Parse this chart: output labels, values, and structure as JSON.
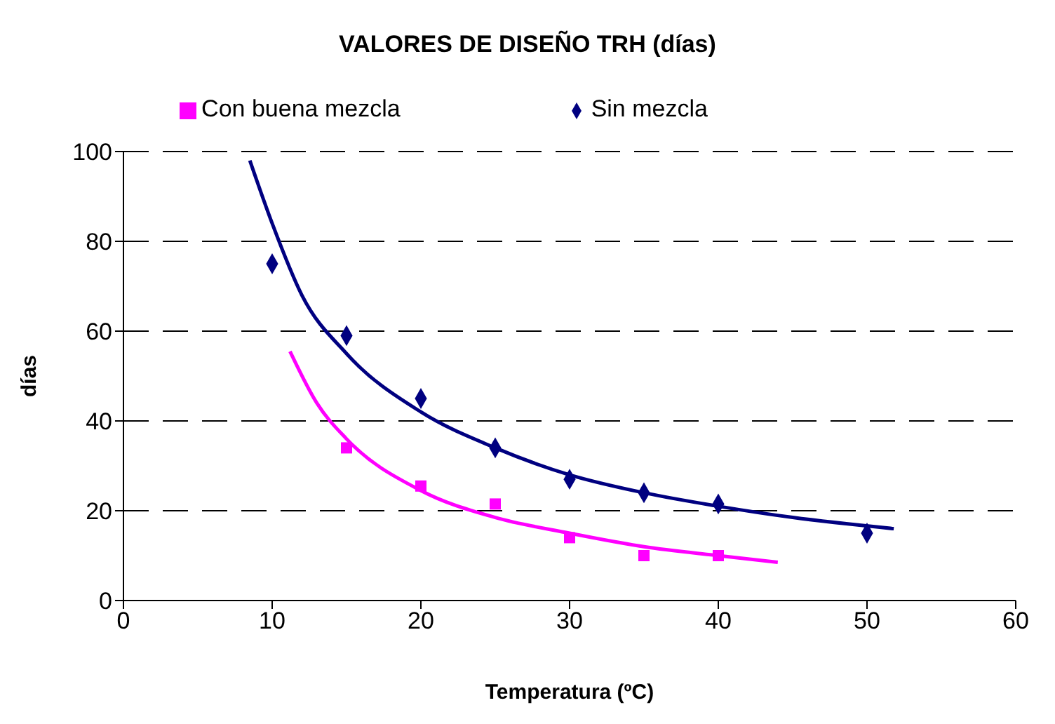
{
  "chart_data": {
    "type": "scatter",
    "title": "VALORES DE DISEÑO TRH (días)",
    "xlabel": "Temperatura (ºC)",
    "ylabel": "días",
    "xlim": [
      0,
      60
    ],
    "xticks": [
      0,
      10,
      20,
      30,
      40,
      50,
      60
    ],
    "ylim": [
      0,
      100
    ],
    "yticks": [
      0,
      20,
      40,
      60,
      80,
      100
    ],
    "grid": "y",
    "legend": "top",
    "series": [
      {
        "name": "Sin mezcla",
        "color": "#000080",
        "marker": "diamond",
        "x": [
          10,
          15,
          20,
          25,
          30,
          35,
          40,
          50
        ],
        "values": [
          75,
          59,
          45,
          34,
          27,
          24,
          21.5,
          15
        ]
      },
      {
        "name": "Con buena mezcla",
        "color": "#ff00ff",
        "marker": "square",
        "x": [
          15,
          20,
          25,
          30,
          35,
          40
        ],
        "values": [
          34,
          25.5,
          21.5,
          14,
          10,
          10
        ]
      },
      {
        "type": "line",
        "color": "#000080",
        "marker": "none",
        "x": [
          8.5,
          10,
          12,
          15,
          20,
          25,
          30,
          35,
          40,
          45,
          51.8
        ],
        "values": [
          98,
          84,
          68,
          55,
          42,
          34,
          28,
          24,
          21,
          18.5,
          16
        ]
      },
      {
        "type": "line",
        "color": "#ff00ff",
        "marker": "none",
        "x": [
          11.2,
          13,
          15,
          20,
          25,
          30,
          35,
          40,
          44
        ],
        "values": [
          55.5,
          44,
          36,
          24.5,
          18.5,
          15,
          12,
          10,
          8.5
        ]
      }
    ]
  }
}
